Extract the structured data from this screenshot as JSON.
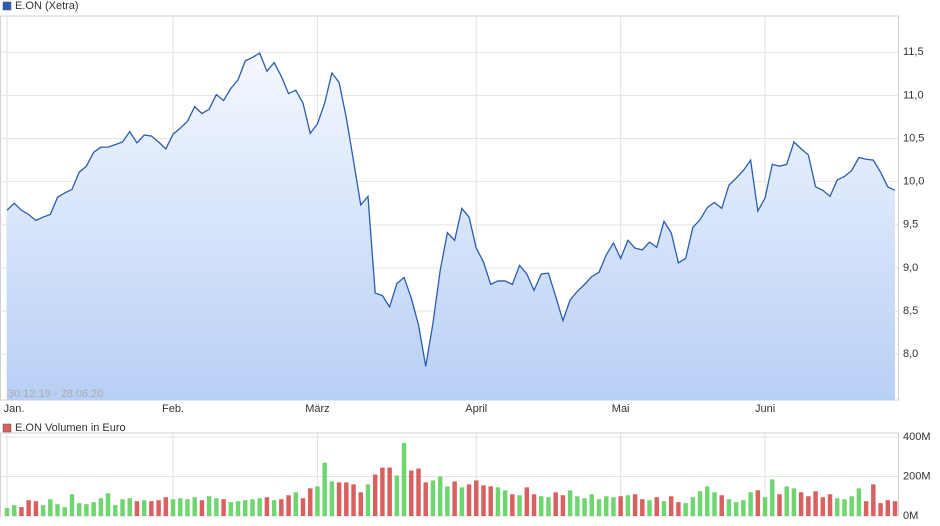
{
  "chart_data": [
    {
      "type": "area",
      "annotation": "30.12.19 - 28.06.20",
      "categories": [
        "Jan.",
        null,
        null,
        null,
        null,
        null,
        null,
        null,
        null,
        null,
        null,
        null,
        null,
        null,
        null,
        null,
        null,
        null,
        null,
        null,
        null,
        null,
        null,
        "Feb.",
        null,
        null,
        null,
        null,
        null,
        null,
        null,
        null,
        null,
        null,
        null,
        null,
        null,
        null,
        null,
        null,
        null,
        null,
        null,
        "März",
        null,
        null,
        null,
        null,
        null,
        null,
        null,
        null,
        null,
        null,
        null,
        null,
        null,
        null,
        null,
        null,
        null,
        null,
        null,
        null,
        null,
        "April",
        null,
        null,
        null,
        null,
        null,
        null,
        null,
        null,
        null,
        null,
        null,
        null,
        null,
        null,
        null,
        null,
        null,
        null,
        null,
        "Mai",
        null,
        null,
        null,
        null,
        null,
        null,
        null,
        null,
        null,
        null,
        null,
        null,
        null,
        null,
        null,
        null,
        null,
        null,
        null,
        "Juni",
        null,
        null,
        null,
        null,
        null,
        null,
        null,
        null,
        null,
        null,
        null,
        null,
        null,
        null,
        null,
        null,
        null,
        null
      ],
      "series": [
        {
          "name": "E.ON (Xetra)",
          "color": "#2a5db0",
          "values": [
            9.67,
            9.75,
            9.67,
            9.62,
            9.55,
            9.59,
            9.62,
            9.82,
            9.87,
            9.91,
            10.11,
            10.18,
            10.34,
            10.4,
            10.4,
            10.43,
            10.46,
            10.58,
            10.45,
            10.54,
            10.53,
            10.46,
            10.38,
            10.55,
            10.62,
            10.7,
            10.87,
            10.79,
            10.84,
            11.01,
            10.94,
            11.08,
            11.18,
            11.4,
            11.44,
            11.49,
            11.28,
            11.38,
            11.22,
            11.02,
            11.06,
            10.91,
            10.56,
            10.67,
            10.91,
            11.26,
            11.15,
            10.74,
            10.24,
            9.73,
            9.83,
            8.71,
            8.68,
            8.55,
            8.82,
            8.89,
            8.65,
            8.34,
            7.86,
            8.36,
            8.97,
            9.41,
            9.32,
            9.69,
            9.59,
            9.23,
            9.07,
            8.81,
            8.85,
            8.85,
            8.81,
            9.03,
            8.93,
            8.74,
            8.93,
            8.94,
            8.67,
            8.39,
            8.63,
            8.73,
            8.81,
            8.9,
            8.95,
            9.15,
            9.29,
            9.11,
            9.32,
            9.23,
            9.21,
            9.3,
            9.24,
            9.54,
            9.41,
            9.06,
            9.11,
            9.47,
            9.56,
            9.7,
            9.76,
            9.69,
            9.96,
            10.04,
            10.13,
            10.25,
            9.66,
            9.81,
            10.2,
            10.18,
            10.2,
            10.46,
            10.38,
            10.31,
            9.94,
            9.9,
            9.83,
            10.02,
            10.06,
            10.13,
            10.28,
            10.26,
            10.25,
            10.11,
            9.94,
            9.9
          ]
        }
      ],
      "ylim": [
        7.47,
        11.92
      ],
      "yticks": [
        {
          "value": 8,
          "label": "8,0"
        },
        {
          "value": 8.5,
          "label": "8,5"
        },
        {
          "value": 9,
          "label": "9,0"
        },
        {
          "value": 9.5,
          "label": "9,5"
        },
        {
          "value": 10,
          "label": "10,0"
        },
        {
          "value": 10.5,
          "label": "10,5"
        },
        {
          "value": 11,
          "label": "11,0"
        },
        {
          "value": 11.5,
          "label": "11,5"
        }
      ],
      "grid": true
    },
    {
      "type": "bar",
      "up_color": "#6fd66f",
      "series": [
        {
          "name": "E.ON Volumen in Euro",
          "color": "#d9605e",
          "values": [
            40,
            55,
            45,
            80,
            75,
            55,
            85,
            60,
            45,
            110,
            65,
            60,
            70,
            90,
            115,
            55,
            85,
            90,
            75,
            80,
            75,
            80,
            95,
            85,
            90,
            85,
            95,
            80,
            100,
            90,
            85,
            70,
            75,
            80,
            85,
            90,
            95,
            80,
            85,
            105,
            120,
            90,
            140,
            150,
            270,
            175,
            170,
            170,
            160,
            120,
            160,
            210,
            245,
            245,
            205,
            370,
            230,
            240,
            170,
            180,
            200,
            150,
            175,
            145,
            160,
            180,
            155,
            150,
            145,
            130,
            110,
            105,
            145,
            110,
            100,
            95,
            120,
            105,
            130,
            100,
            90,
            110,
            85,
            100,
            95,
            100,
            105,
            110,
            85,
            80,
            95,
            75,
            100,
            70,
            65,
            95,
            125,
            150,
            120,
            105,
            85,
            70,
            80,
            120,
            130,
            95,
            185,
            110,
            150,
            140,
            120,
            100,
            125,
            95,
            110,
            90,
            85,
            100,
            140,
            75,
            160,
            65,
            80,
            75
          ]
        }
      ],
      "ylim": [
        0,
        420
      ],
      "yticks": [
        {
          "value": 0,
          "label": "0M"
        },
        {
          "value": 200,
          "label": "200M"
        },
        {
          "value": 400,
          "label": "400M"
        }
      ],
      "grid": true
    }
  ]
}
